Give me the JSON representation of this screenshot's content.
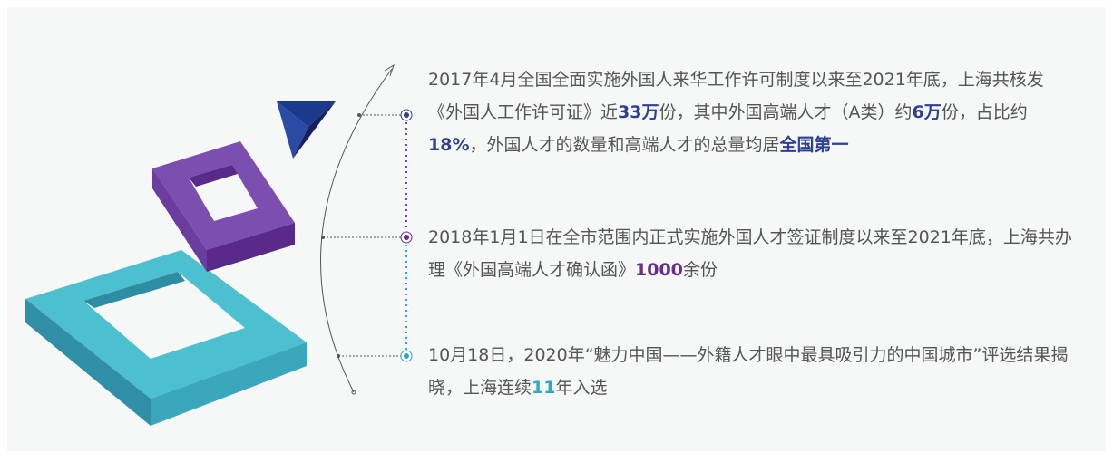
{
  "items": [
    {
      "color": "#2e3f94",
      "segments": [
        {
          "text": "2017年4月全国全面实施外国人来华工作许可制度以来至2021年底，上海共核发《外国人工作许可证》近"
        },
        {
          "text": "33万",
          "highlight": true
        },
        {
          "text": "份，其中外国高端人才（A类）约"
        },
        {
          "text": "6万",
          "highlight": true
        },
        {
          "text": "份，占比约"
        },
        {
          "text": "18%",
          "highlight": true
        },
        {
          "text": "，外国人才的数量和高端人才的总量均居"
        },
        {
          "text": "全国第一",
          "highlight": true
        }
      ]
    },
    {
      "color": "#6a2d8f",
      "segments": [
        {
          "text": "2018年1月1日在全市范围内正式实施外国人才签证制度以来至2021年底，上海共办理《外国高端人才确认函》"
        },
        {
          "text": "1000",
          "highlight": true
        },
        {
          "text": "余份"
        }
      ]
    },
    {
      "color": "#2aa9c9",
      "segments": [
        {
          "text": "10月18日，2020年“魅力中国——外籍人才眼中最具吸引力的中国城市”评选结果揭晓，上海连续"
        },
        {
          "text": "11",
          "highlight": true
        },
        {
          "text": "年入选"
        }
      ]
    }
  ]
}
